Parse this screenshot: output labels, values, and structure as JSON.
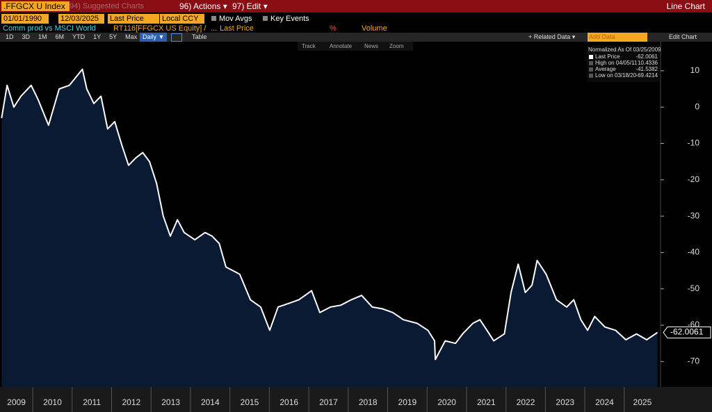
{
  "ui": {
    "ticker": ".FFGCX U Index",
    "suggested": "94) Suggested Charts",
    "actions": "96) Actions ▾",
    "edit": "97) Edit ▾",
    "chart_type": "Line Chart",
    "start_date": "01/01/1990",
    "end_date": "12/03/2025",
    "field": "Last Price",
    "currency": "Local CCY",
    "mov_avgs": "Mov Avgs",
    "key_events": "Key Events",
    "description": "Comm prod vs MSCI World",
    "security": "RT116[FFGCX US Equity] /",
    "ellipsis": "...",
    "field2": "Last Price",
    "percent": "%",
    "volume": "Volume",
    "periods": [
      "1D",
      "3D",
      "1M",
      "6M",
      "YTD",
      "1Y",
      "5Y",
      "Max"
    ],
    "frequency": "Daily ▼",
    "table": "Table",
    "related": "+ Related Data ▾",
    "add_data": "Add Data",
    "edit_chart": "Edit Chart",
    "tools": [
      "Track",
      "Annotate",
      "News",
      "Zoom"
    ]
  },
  "chart_data": {
    "type": "line",
    "x": [
      2009.21,
      2009.35,
      2009.52,
      2009.7,
      2009.96,
      2010.14,
      2010.4,
      2010.67,
      2010.93,
      2011.26,
      2011.37,
      2011.55,
      2011.73,
      2011.9,
      2012.08,
      2012.26,
      2012.43,
      2012.61,
      2012.79,
      2012.96,
      2013.14,
      2013.31,
      2013.49,
      2013.67,
      2013.84,
      2014.11,
      2014.37,
      2014.55,
      2014.73,
      2014.9,
      2015.08,
      2015.25,
      2015.52,
      2015.78,
      2016.01,
      2016.22,
      2016.49,
      2016.75,
      2017.07,
      2017.28,
      2017.55,
      2017.81,
      2018.08,
      2018.34,
      2018.61,
      2018.87,
      2019.13,
      2019.4,
      2019.75,
      2020.02,
      2020.19,
      2020.21,
      2020.46,
      2020.72,
      2020.9,
      2021.16,
      2021.34,
      2021.52,
      2021.69,
      2021.96,
      2022.13,
      2022.31,
      2022.49,
      2022.66,
      2022.79,
      2023.02,
      2023.28,
      2023.54,
      2023.72,
      2023.9,
      2024.07,
      2024.25,
      2024.51,
      2024.78,
      2025.04,
      2025.31,
      2025.57,
      2025.84
    ],
    "series": [
      {
        "name": "Last Price",
        "color": "#ffffff",
        "values": [
          -3,
          6,
          0,
          3,
          6,
          2,
          -5,
          5,
          6,
          10.4336,
          5,
          1,
          3,
          -6,
          -4,
          -10.5,
          -16,
          -14,
          -12.5,
          -15,
          -21,
          -30,
          -35.5,
          -31,
          -34.5,
          -36.5,
          -34.5,
          -35.5,
          -37.5,
          -44,
          -45,
          -46,
          -53,
          -55,
          -61.4,
          -55,
          -54,
          -53,
          -50.5,
          -56.5,
          -55,
          -54.5,
          -53,
          -51.8,
          -55,
          -55.5,
          -56.5,
          -58.5,
          -59.5,
          -61.4,
          -64.3,
          -69.4214,
          -64.3,
          -65,
          -62.4,
          -59.5,
          -58.5,
          -61.4,
          -64.3,
          -62.4,
          -51,
          -43.2,
          -51,
          -49,
          -42.2,
          -46,
          -53,
          -55,
          -53,
          -58.5,
          -61.4,
          -57.6,
          -60.5,
          -61.4,
          -64,
          -62.4,
          -64,
          -62.0061
        ]
      }
    ],
    "fill_color": "#0b1a33",
    "xlim": [
      2009.17,
      2025.92
    ],
    "xticks": [
      2009,
      2010,
      2011,
      2012,
      2013,
      2014,
      2015,
      2016,
      2017,
      2018,
      2019,
      2020,
      2021,
      2022,
      2023,
      2024,
      2025
    ],
    "ylim": [
      -77,
      18
    ],
    "yticks": [
      10,
      0,
      -10,
      -20,
      -30,
      -40,
      -50,
      -60,
      -70
    ],
    "legend_title": "Normalized As Of 03/25/2009",
    "last_label": "-62.0061",
    "stats": [
      {
        "label": "High on 04/05/11",
        "value": "10.4336"
      },
      {
        "label": "Average",
        "value": "-41.5382"
      },
      {
        "label": "Low on 03/18/20",
        "value": "-69.4214"
      }
    ]
  }
}
